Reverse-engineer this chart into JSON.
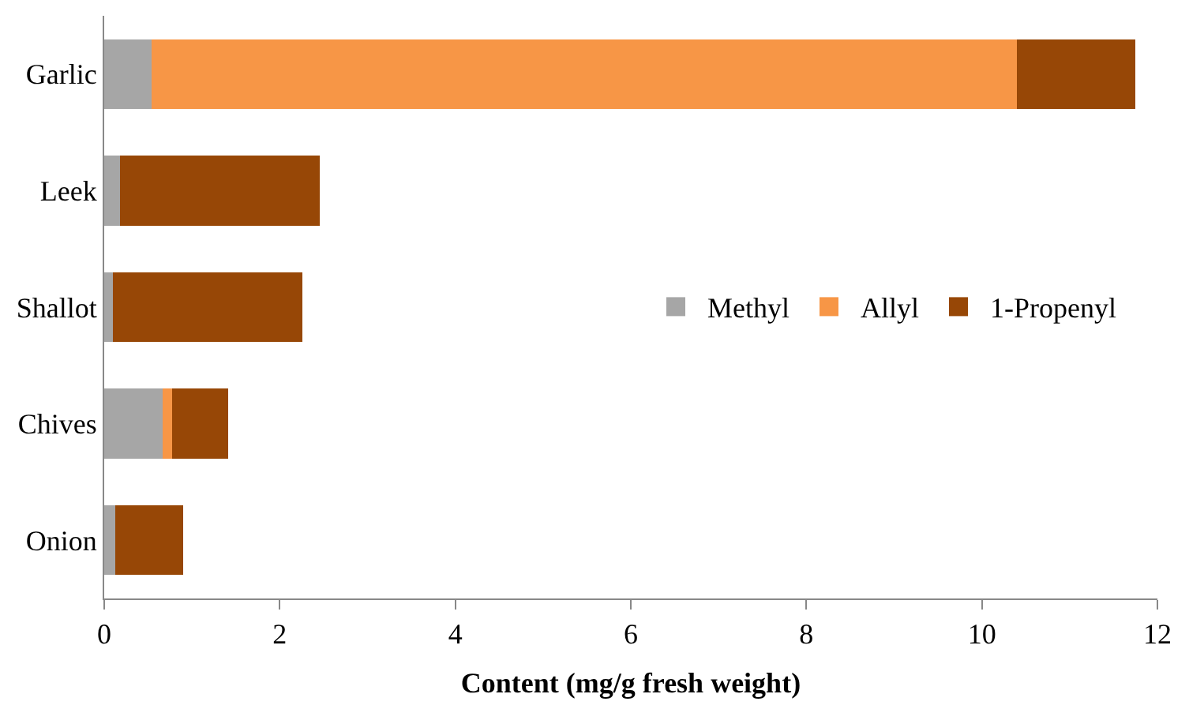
{
  "chart_data": {
    "type": "bar",
    "orientation": "horizontal",
    "stacked": true,
    "xlabel": "Content (mg/g fresh weight)",
    "categories": [
      "Garlic",
      "Leek",
      "Shallot",
      "Chives",
      "Onion"
    ],
    "series": [
      {
        "name": "Methyl",
        "color": "#a6a6a6",
        "values": [
          0.54,
          0.18,
          0.1,
          0.67,
          0.13
        ]
      },
      {
        "name": "Allyl",
        "color": "#f79646",
        "values": [
          9.86,
          0,
          0,
          0.1,
          0
        ]
      },
      {
        "name": "1-Propenyl",
        "color": "#974706",
        "values": [
          1.35,
          2.28,
          2.16,
          0.64,
          0.77
        ]
      }
    ],
    "xlim": [
      0,
      12
    ],
    "xticks": [
      0,
      2,
      4,
      6,
      8,
      10,
      12
    ],
    "legend": "right"
  }
}
